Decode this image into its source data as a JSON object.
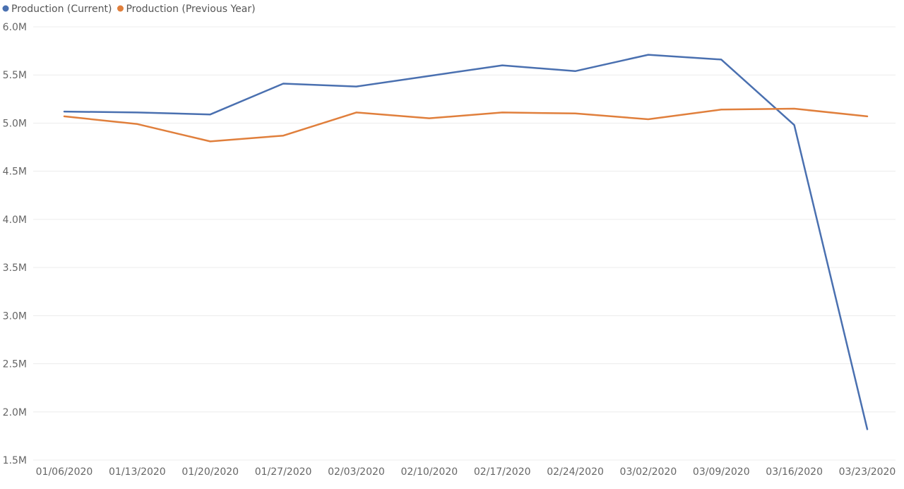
{
  "chart_data": {
    "type": "line",
    "categories": [
      "01/06/2020",
      "01/13/2020",
      "01/20/2020",
      "01/27/2020",
      "02/03/2020",
      "02/10/2020",
      "02/17/2020",
      "02/24/2020",
      "03/02/2020",
      "03/09/2020",
      "03/16/2020",
      "03/23/2020"
    ],
    "series": [
      {
        "name": "Production (Current)",
        "color": "#4a70b0",
        "values": [
          5.12,
          5.11,
          5.09,
          5.41,
          5.38,
          5.49,
          5.6,
          5.54,
          5.71,
          5.66,
          4.98,
          1.82
        ]
      },
      {
        "name": "Production (Previous Year)",
        "color": "#e07f3c",
        "values": [
          5.07,
          4.99,
          4.81,
          4.87,
          5.11,
          5.05,
          5.11,
          5.1,
          5.04,
          5.14,
          5.15,
          5.07
        ]
      }
    ],
    "ylim": [
      1.5,
      6.0
    ],
    "yticks": [
      {
        "value": 6.0,
        "label": "6.0M"
      },
      {
        "value": 5.5,
        "label": "5.5M"
      },
      {
        "value": 5.0,
        "label": "5.0M"
      },
      {
        "value": 4.5,
        "label": "4.5M"
      },
      {
        "value": 4.0,
        "label": "4.0M"
      },
      {
        "value": 3.5,
        "label": "3.5M"
      },
      {
        "value": 3.0,
        "label": "3.0M"
      },
      {
        "value": 2.5,
        "label": "2.5M"
      },
      {
        "value": 2.0,
        "label": "2.0M"
      },
      {
        "value": 1.5,
        "label": "1.5M"
      }
    ],
    "grid": true,
    "legend": "top-left"
  }
}
